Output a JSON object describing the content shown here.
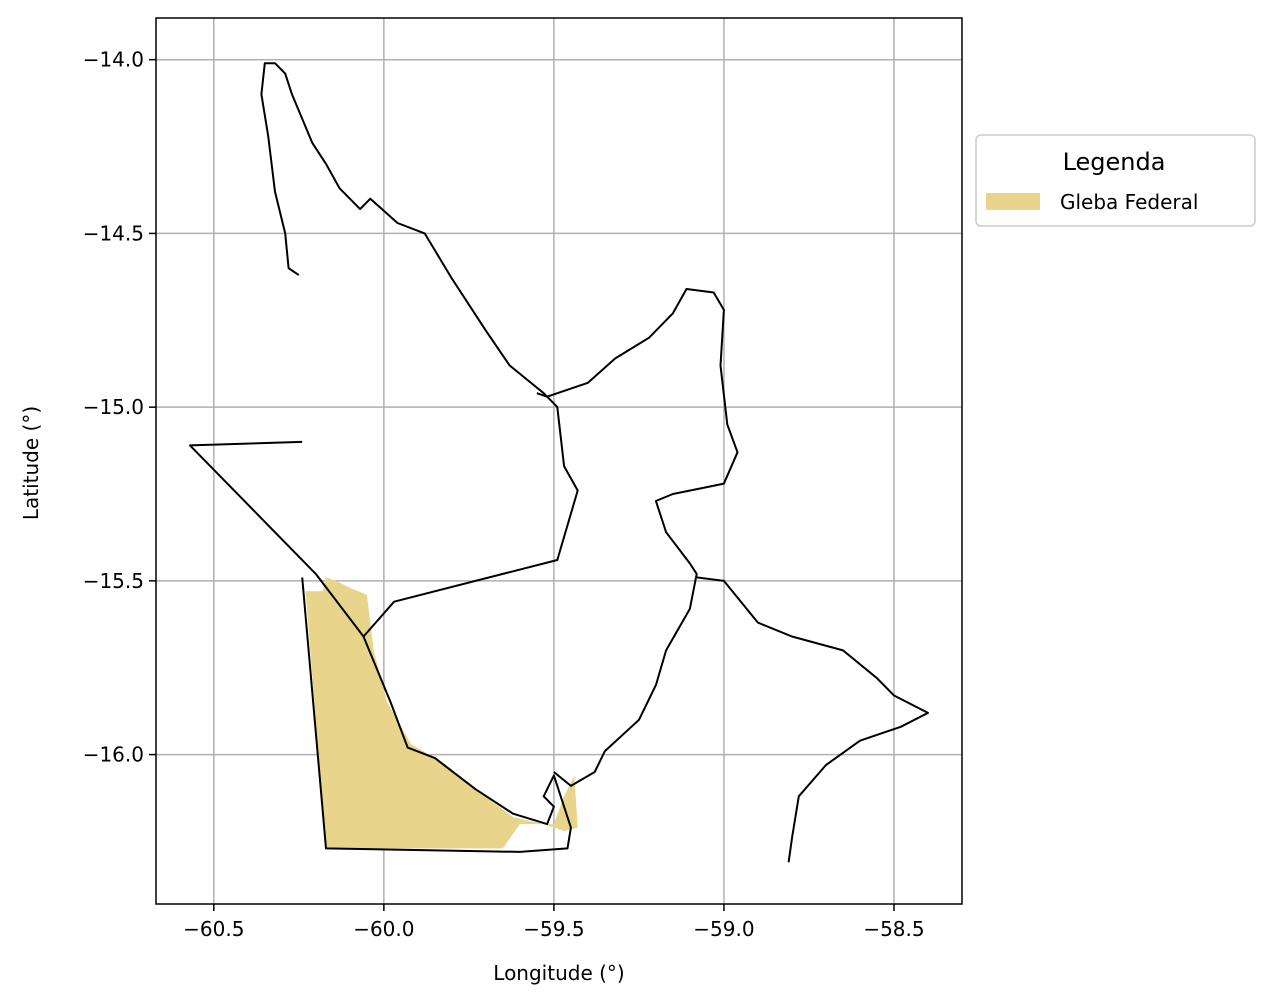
{
  "chart_data": {
    "type": "map",
    "xlabel": "Longitude (°)",
    "ylabel": "Latitude (°)",
    "xlim": [
      -60.67,
      -58.3
    ],
    "ylim": [
      -16.43,
      -13.88
    ],
    "grid": true,
    "x_ticks": [
      -60.5,
      -60.0,
      -59.5,
      -59.0,
      -58.5
    ],
    "y_ticks": [
      -14.0,
      -14.5,
      -15.0,
      -15.5,
      -16.0
    ],
    "x_tick_labels": [
      "−60.5",
      "−60.0",
      "−59.5",
      "−59.0",
      "−58.5"
    ],
    "y_tick_labels": [
      "−14.0",
      "−14.5",
      "−15.0",
      "−15.5",
      "−16.0"
    ],
    "legend": {
      "title": "Legenda",
      "placement": "outside-right-top",
      "entries": [
        {
          "label": "Gleba Federal",
          "color": "#e8d48a"
        }
      ]
    },
    "boundary_color": "#000000",
    "polygons": [
      {
        "name": "boundary-north",
        "coords": [
          [
            -60.25,
            -14.62
          ],
          [
            -60.28,
            -14.6
          ],
          [
            -60.29,
            -14.5
          ],
          [
            -60.32,
            -14.38
          ],
          [
            -60.34,
            -14.22
          ],
          [
            -60.36,
            -14.1
          ],
          [
            -60.35,
            -14.01
          ],
          [
            -60.32,
            -14.01
          ],
          [
            -60.29,
            -14.04
          ],
          [
            -60.27,
            -14.1
          ],
          [
            -60.24,
            -14.17
          ],
          [
            -60.21,
            -14.24
          ],
          [
            -60.17,
            -14.3
          ],
          [
            -60.13,
            -14.37
          ],
          [
            -60.07,
            -14.43
          ],
          [
            -60.04,
            -14.4
          ],
          [
            -59.96,
            -14.47
          ],
          [
            -59.88,
            -14.5
          ],
          [
            -59.8,
            -14.63
          ],
          [
            -59.7,
            -14.78
          ],
          [
            -59.63,
            -14.88
          ],
          [
            -59.53,
            -14.96
          ],
          [
            -59.49,
            -15.0
          ],
          [
            -59.47,
            -15.17
          ],
          [
            -59.43,
            -15.24
          ],
          [
            -59.49,
            -15.44
          ],
          [
            -59.97,
            -15.56
          ],
          [
            -60.06,
            -15.66
          ],
          [
            -60.2,
            -15.48
          ],
          [
            -60.57,
            -15.11
          ],
          [
            -60.24,
            -15.1
          ]
        ]
      },
      {
        "name": "boundary-east-upper",
        "coords": [
          [
            -59.55,
            -14.96
          ],
          [
            -59.52,
            -14.97
          ],
          [
            -59.4,
            -14.93
          ],
          [
            -59.32,
            -14.86
          ],
          [
            -59.22,
            -14.8
          ],
          [
            -59.15,
            -14.73
          ],
          [
            -59.11,
            -14.66
          ],
          [
            -59.03,
            -14.67
          ],
          [
            -59.0,
            -14.72
          ],
          [
            -59.01,
            -14.88
          ],
          [
            -58.99,
            -15.05
          ],
          [
            -58.96,
            -15.13
          ],
          [
            -59.0,
            -15.22
          ],
          [
            -59.05,
            -15.23
          ],
          [
            -59.15,
            -15.25
          ],
          [
            -59.2,
            -15.27
          ],
          [
            -59.17,
            -15.36
          ],
          [
            -59.1,
            -15.45
          ],
          [
            -59.08,
            -15.48
          ],
          [
            -59.1,
            -15.58
          ],
          [
            -59.17,
            -15.7
          ],
          [
            -59.2,
            -15.8
          ],
          [
            -59.25,
            -15.9
          ],
          [
            -59.35,
            -15.99
          ],
          [
            -59.38,
            -16.05
          ],
          [
            -59.45,
            -16.09
          ],
          [
            -59.5,
            -16.05
          ]
        ]
      },
      {
        "name": "boundary-east-lower",
        "coords": [
          [
            -59.08,
            -15.49
          ],
          [
            -59.0,
            -15.5
          ],
          [
            -58.9,
            -15.62
          ],
          [
            -58.8,
            -15.66
          ],
          [
            -58.65,
            -15.7
          ],
          [
            -58.55,
            -15.78
          ],
          [
            -58.5,
            -15.83
          ],
          [
            -58.4,
            -15.88
          ],
          [
            -58.48,
            -15.92
          ],
          [
            -58.6,
            -15.96
          ],
          [
            -58.7,
            -16.03
          ],
          [
            -58.78,
            -16.12
          ],
          [
            -58.8,
            -16.24
          ],
          [
            -58.81,
            -16.31
          ]
        ]
      },
      {
        "name": "boundary-south",
        "coords": [
          [
            -60.06,
            -15.66
          ],
          [
            -59.98,
            -15.85
          ],
          [
            -59.93,
            -15.98
          ],
          [
            -59.85,
            -16.01
          ],
          [
            -59.73,
            -16.1
          ],
          [
            -59.62,
            -16.17
          ],
          [
            -59.52,
            -16.2
          ],
          [
            -59.5,
            -16.15
          ],
          [
            -59.53,
            -16.12
          ],
          [
            -59.5,
            -16.06
          ],
          [
            -59.45,
            -16.21
          ],
          [
            -59.46,
            -16.27
          ],
          [
            -59.6,
            -16.28
          ],
          [
            -60.17,
            -16.27
          ],
          [
            -60.24,
            -15.49
          ]
        ]
      },
      {
        "name": "gleba-federal",
        "fill": "#e8d48a",
        "coords": [
          [
            -60.23,
            -15.53
          ],
          [
            -60.18,
            -15.53
          ],
          [
            -60.17,
            -15.49
          ],
          [
            -60.14,
            -15.5
          ],
          [
            -60.1,
            -15.52
          ],
          [
            -60.05,
            -15.54
          ],
          [
            -60.03,
            -15.7
          ],
          [
            -59.99,
            -15.85
          ],
          [
            -59.92,
            -15.97
          ],
          [
            -59.83,
            -16.02
          ],
          [
            -59.73,
            -16.1
          ],
          [
            -59.62,
            -16.18
          ],
          [
            -59.53,
            -16.2
          ],
          [
            -59.47,
            -16.22
          ],
          [
            -59.43,
            -16.21
          ],
          [
            -59.44,
            -16.06
          ],
          [
            -59.47,
            -16.12
          ],
          [
            -59.5,
            -16.2
          ],
          [
            -59.6,
            -16.2
          ],
          [
            -59.65,
            -16.27
          ],
          [
            -60.17,
            -16.27
          ]
        ]
      }
    ]
  }
}
